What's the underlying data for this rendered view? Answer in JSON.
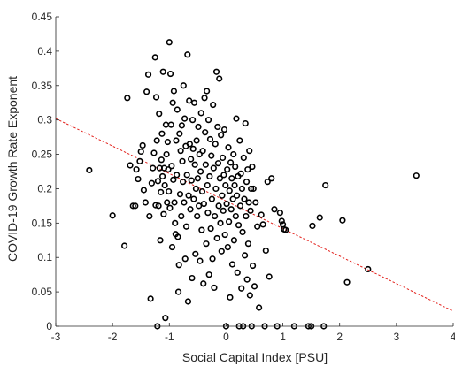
{
  "chart_data": {
    "type": "scatter",
    "title": "",
    "xlabel": "Social Capital Index [PSU]",
    "ylabel": "COVID-19 Growth Rate Exponent",
    "xlim": [
      -3,
      4
    ],
    "ylim": [
      0,
      0.45
    ],
    "x_ticks": [
      "-3",
      "-2",
      "-1",
      "0",
      "1",
      "2",
      "3",
      "4"
    ],
    "y_ticks": [
      "0",
      "0.05",
      "0.1",
      "0.15",
      "0.2",
      "0.25",
      "0.3",
      "0.35",
      "0.4",
      "0.45"
    ],
    "grid": false,
    "marker": "open-circle",
    "colors": {
      "points": "#000000",
      "fit_line": "#e3201b",
      "axis": "#262626"
    },
    "fit_line": {
      "style": "dashed",
      "x": [
        -3,
        4
      ],
      "y": [
        0.302,
        0.022
      ]
    },
    "points": [
      {
        "x": -2.41,
        "y": 0.227
      },
      {
        "x": -2.0,
        "y": 0.161
      },
      {
        "x": -1.79,
        "y": 0.117
      },
      {
        "x": -1.74,
        "y": 0.332
      },
      {
        "x": -1.69,
        "y": 0.234
      },
      {
        "x": -1.64,
        "y": 0.175
      },
      {
        "x": -1.6,
        "y": 0.175
      },
      {
        "x": -1.58,
        "y": 0.228
      },
      {
        "x": -1.55,
        "y": 0.214
      },
      {
        "x": -1.52,
        "y": 0.24
      },
      {
        "x": -1.5,
        "y": 0.254
      },
      {
        "x": -1.47,
        "y": 0.263
      },
      {
        "x": -1.45,
        "y": 0.198
      },
      {
        "x": -1.42,
        "y": 0.18
      },
      {
        "x": -1.4,
        "y": 0.341
      },
      {
        "x": -1.37,
        "y": 0.366
      },
      {
        "x": -1.35,
        "y": 0.16
      },
      {
        "x": -1.33,
        "y": 0.04
      },
      {
        "x": -1.31,
        "y": 0.208
      },
      {
        "x": -1.29,
        "y": 0.23
      },
      {
        "x": -1.27,
        "y": 0.252
      },
      {
        "x": -1.25,
        "y": 0.391
      },
      {
        "x": -1.24,
        "y": 0.176
      },
      {
        "x": -1.23,
        "y": 0.333
      },
      {
        "x": -1.22,
        "y": 0.27
      },
      {
        "x": -1.21,
        "y": 0.0
      },
      {
        "x": -1.2,
        "y": 0.211
      },
      {
        "x": -1.19,
        "y": 0.175
      },
      {
        "x": -1.18,
        "y": 0.309
      },
      {
        "x": -1.17,
        "y": 0.23
      },
      {
        "x": -1.16,
        "y": 0.125
      },
      {
        "x": -1.15,
        "y": 0.195
      },
      {
        "x": -1.14,
        "y": 0.242
      },
      {
        "x": -1.13,
        "y": 0.28
      },
      {
        "x": -1.12,
        "y": 0.218
      },
      {
        "x": -1.11,
        "y": 0.37
      },
      {
        "x": -1.1,
        "y": 0.163
      },
      {
        "x": -1.09,
        "y": 0.23
      },
      {
        "x": -1.08,
        "y": 0.205
      },
      {
        "x": -1.07,
        "y": 0.012
      },
      {
        "x": -1.06,
        "y": 0.293
      },
      {
        "x": -1.05,
        "y": 0.25
      },
      {
        "x": -1.04,
        "y": 0.18
      },
      {
        "x": -1.03,
        "y": 0.268
      },
      {
        "x": -1.02,
        "y": 0.228
      },
      {
        "x": -1.01,
        "y": 0.196
      },
      {
        "x": -1.0,
        "y": 0.413
      },
      {
        "x": -0.99,
        "y": 0.172
      },
      {
        "x": -0.98,
        "y": 0.367
      },
      {
        "x": -0.97,
        "y": 0.293
      },
      {
        "x": -0.96,
        "y": 0.233
      },
      {
        "x": -0.95,
        "y": 0.115
      },
      {
        "x": -0.94,
        "y": 0.325
      },
      {
        "x": -0.93,
        "y": 0.213
      },
      {
        "x": -0.92,
        "y": 0.342
      },
      {
        "x": -0.91,
        "y": 0.18
      },
      {
        "x": -0.9,
        "y": 0.15
      },
      {
        "x": -0.89,
        "y": 0.134
      },
      {
        "x": -0.88,
        "y": 0.27
      },
      {
        "x": -0.87,
        "y": 0.22
      },
      {
        "x": -0.86,
        "y": 0.315
      },
      {
        "x": -0.85,
        "y": 0.13
      },
      {
        "x": -0.84,
        "y": 0.05
      },
      {
        "x": -0.83,
        "y": 0.089
      },
      {
        "x": -0.82,
        "y": 0.28
      },
      {
        "x": -0.81,
        "y": 0.192
      },
      {
        "x": -0.8,
        "y": 0.255
      },
      {
        "x": -0.79,
        "y": 0.16
      },
      {
        "x": -0.78,
        "y": 0.292
      },
      {
        "x": -0.77,
        "y": 0.24
      },
      {
        "x": -0.76,
        "y": 0.21
      },
      {
        "x": -0.75,
        "y": 0.35
      },
      {
        "x": -0.74,
        "y": 0.18
      },
      {
        "x": -0.73,
        "y": 0.302
      },
      {
        "x": -0.72,
        "y": 0.098
      },
      {
        "x": -0.71,
        "y": 0.262
      },
      {
        "x": -0.7,
        "y": 0.145
      },
      {
        "x": -0.69,
        "y": 0.22
      },
      {
        "x": -0.68,
        "y": 0.395
      },
      {
        "x": -0.67,
        "y": 0.036
      },
      {
        "x": -0.66,
        "y": 0.19
      },
      {
        "x": -0.65,
        "y": 0.328
      },
      {
        "x": -0.64,
        "y": 0.265
      },
      {
        "x": -0.63,
        "y": 0.17
      },
      {
        "x": -0.62,
        "y": 0.243
      },
      {
        "x": -0.61,
        "y": 0.212
      },
      {
        "x": -0.6,
        "y": 0.07
      },
      {
        "x": -0.59,
        "y": 0.3
      },
      {
        "x": -0.58,
        "y": 0.258
      },
      {
        "x": -0.57,
        "y": 0.185
      },
      {
        "x": -0.56,
        "y": 0.325
      },
      {
        "x": -0.55,
        "y": 0.235
      },
      {
        "x": -0.54,
        "y": 0.105
      },
      {
        "x": -0.53,
        "y": 0.2
      },
      {
        "x": -0.52,
        "y": 0.27
      },
      {
        "x": -0.51,
        "y": 0.16
      },
      {
        "x": -0.5,
        "y": 0.215
      },
      {
        "x": -0.49,
        "y": 0.29
      },
      {
        "x": -0.48,
        "y": 0.175
      },
      {
        "x": -0.47,
        "y": 0.25
      },
      {
        "x": -0.46,
        "y": 0.095
      },
      {
        "x": -0.45,
        "y": 0.225
      },
      {
        "x": -0.44,
        "y": 0.31
      },
      {
        "x": -0.43,
        "y": 0.14
      },
      {
        "x": -0.42,
        "y": 0.196
      },
      {
        "x": -0.41,
        "y": 0.255
      },
      {
        "x": -0.4,
        "y": 0.062
      },
      {
        "x": -0.39,
        "y": 0.178
      },
      {
        "x": -0.38,
        "y": 0.332
      },
      {
        "x": -0.37,
        "y": 0.282
      },
      {
        "x": -0.36,
        "y": 0.235
      },
      {
        "x": -0.35,
        "y": 0.12
      },
      {
        "x": -0.34,
        "y": 0.342
      },
      {
        "x": -0.33,
        "y": 0.205
      },
      {
        "x": -0.32,
        "y": 0.165
      },
      {
        "x": -0.31,
        "y": 0.3
      },
      {
        "x": -0.3,
        "y": 0.075
      },
      {
        "x": -0.29,
        "y": 0.218
      },
      {
        "x": -0.28,
        "y": 0.272
      },
      {
        "x": -0.27,
        "y": 0.142
      },
      {
        "x": -0.26,
        "y": 0.248
      },
      {
        "x": -0.25,
        "y": 0.185
      },
      {
        "x": -0.24,
        "y": 0.098
      },
      {
        "x": -0.23,
        "y": 0.322
      },
      {
        "x": -0.22,
        "y": 0.23
      },
      {
        "x": -0.21,
        "y": 0.056
      },
      {
        "x": -0.2,
        "y": 0.16
      },
      {
        "x": -0.19,
        "y": 0.265
      },
      {
        "x": -0.18,
        "y": 0.2
      },
      {
        "x": -0.17,
        "y": 0.37
      },
      {
        "x": -0.16,
        "y": 0.128
      },
      {
        "x": -0.15,
        "y": 0.29
      },
      {
        "x": -0.14,
        "y": 0.237
      },
      {
        "x": -0.13,
        "y": 0.175
      },
      {
        "x": -0.12,
        "y": 0.36
      },
      {
        "x": -0.11,
        "y": 0.215
      },
      {
        "x": -0.1,
        "y": 0.15
      },
      {
        "x": -0.09,
        "y": 0.278
      },
      {
        "x": -0.08,
        "y": 0.109
      },
      {
        "x": -0.07,
        "y": 0.19
      },
      {
        "x": -0.06,
        "y": 0.245
      },
      {
        "x": -0.05,
        "y": 0.168
      },
      {
        "x": -0.04,
        "y": 0.22
      },
      {
        "x": -0.03,
        "y": 0.286
      },
      {
        "x": -0.02,
        "y": 0.133
      },
      {
        "x": -0.01,
        "y": 0.205
      },
      {
        "x": 0.0,
        "y": 0.0
      },
      {
        "x": 0.01,
        "y": 0.178
      },
      {
        "x": 0.02,
        "y": 0.228
      },
      {
        "x": 0.03,
        "y": 0.115
      },
      {
        "x": 0.04,
        "y": 0.26
      },
      {
        "x": 0.05,
        "y": 0.152
      },
      {
        "x": 0.06,
        "y": 0.197
      },
      {
        "x": 0.07,
        "y": 0.042
      },
      {
        "x": 0.08,
        "y": 0.238
      },
      {
        "x": 0.09,
        "y": 0.17
      },
      {
        "x": 0.1,
        "y": 0.215
      },
      {
        "x": 0.11,
        "y": 0.09
      },
      {
        "x": 0.12,
        "y": 0.185
      },
      {
        "x": 0.13,
        "y": 0.25
      },
      {
        "x": 0.14,
        "y": 0.125
      },
      {
        "x": 0.15,
        "y": 0.205
      },
      {
        "x": 0.16,
        "y": 0.232
      },
      {
        "x": 0.17,
        "y": 0.16
      },
      {
        "x": 0.18,
        "y": 0.302
      },
      {
        "x": 0.19,
        "y": 0.19
      },
      {
        "x": 0.2,
        "y": 0.078
      },
      {
        "x": 0.21,
        "y": 0.218
      },
      {
        "x": 0.22,
        "y": 0.147
      },
      {
        "x": 0.23,
        "y": 0.0
      },
      {
        "x": 0.24,
        "y": 0.27
      },
      {
        "x": 0.25,
        "y": 0.175
      },
      {
        "x": 0.26,
        "y": 0.222
      },
      {
        "x": 0.27,
        "y": 0.055
      },
      {
        "x": 0.28,
        "y": 0.2
      },
      {
        "x": 0.29,
        "y": 0.137
      },
      {
        "x": 0.3,
        "y": 0.0
      },
      {
        "x": 0.31,
        "y": 0.245
      },
      {
        "x": 0.32,
        "y": 0.185
      },
      {
        "x": 0.33,
        "y": 0.103
      },
      {
        "x": 0.34,
        "y": 0.295
      },
      {
        "x": 0.35,
        "y": 0.16
      },
      {
        "x": 0.36,
        "y": 0.21
      },
      {
        "x": 0.37,
        "y": 0.068
      },
      {
        "x": 0.38,
        "y": 0.228
      },
      {
        "x": 0.39,
        "y": 0.12
      },
      {
        "x": 0.4,
        "y": 0.18
      },
      {
        "x": 0.41,
        "y": 0.255
      },
      {
        "x": 0.42,
        "y": 0.045
      },
      {
        "x": 0.43,
        "y": 0.168
      },
      {
        "x": 0.44,
        "y": 0.2
      },
      {
        "x": 0.45,
        "y": 0.0
      },
      {
        "x": 0.46,
        "y": 0.232
      },
      {
        "x": 0.47,
        "y": 0.088
      },
      {
        "x": 0.48,
        "y": 0.2
      },
      {
        "x": 0.5,
        "y": 0.058
      },
      {
        "x": 0.52,
        "y": 0.18
      },
      {
        "x": 0.55,
        "y": 0.145
      },
      {
        "x": 0.58,
        "y": 0.027
      },
      {
        "x": 0.62,
        "y": 0.162
      },
      {
        "x": 0.65,
        "y": 0.148
      },
      {
        "x": 0.68,
        "y": 0.0
      },
      {
        "x": 0.7,
        "y": 0.11
      },
      {
        "x": 0.73,
        "y": 0.21
      },
      {
        "x": 0.76,
        "y": 0.072
      },
      {
        "x": 0.8,
        "y": 0.215
      },
      {
        "x": 0.85,
        "y": 0.17
      },
      {
        "x": 0.9,
        "y": 0.0
      },
      {
        "x": 0.95,
        "y": 0.165
      },
      {
        "x": 0.98,
        "y": 0.153
      },
      {
        "x": 1.0,
        "y": 0.148
      },
      {
        "x": 1.02,
        "y": 0.141
      },
      {
        "x": 1.05,
        "y": 0.14
      },
      {
        "x": 1.2,
        "y": 0.0
      },
      {
        "x": 1.45,
        "y": 0.0
      },
      {
        "x": 1.5,
        "y": 0.0
      },
      {
        "x": 1.52,
        "y": 0.146
      },
      {
        "x": 1.65,
        "y": 0.158
      },
      {
        "x": 1.72,
        "y": 0.0
      },
      {
        "x": 1.75,
        "y": 0.205
      },
      {
        "x": 2.05,
        "y": 0.154
      },
      {
        "x": 2.13,
        "y": 0.064
      },
      {
        "x": 2.5,
        "y": 0.083
      },
      {
        "x": 3.35,
        "y": 0.219
      }
    ]
  }
}
